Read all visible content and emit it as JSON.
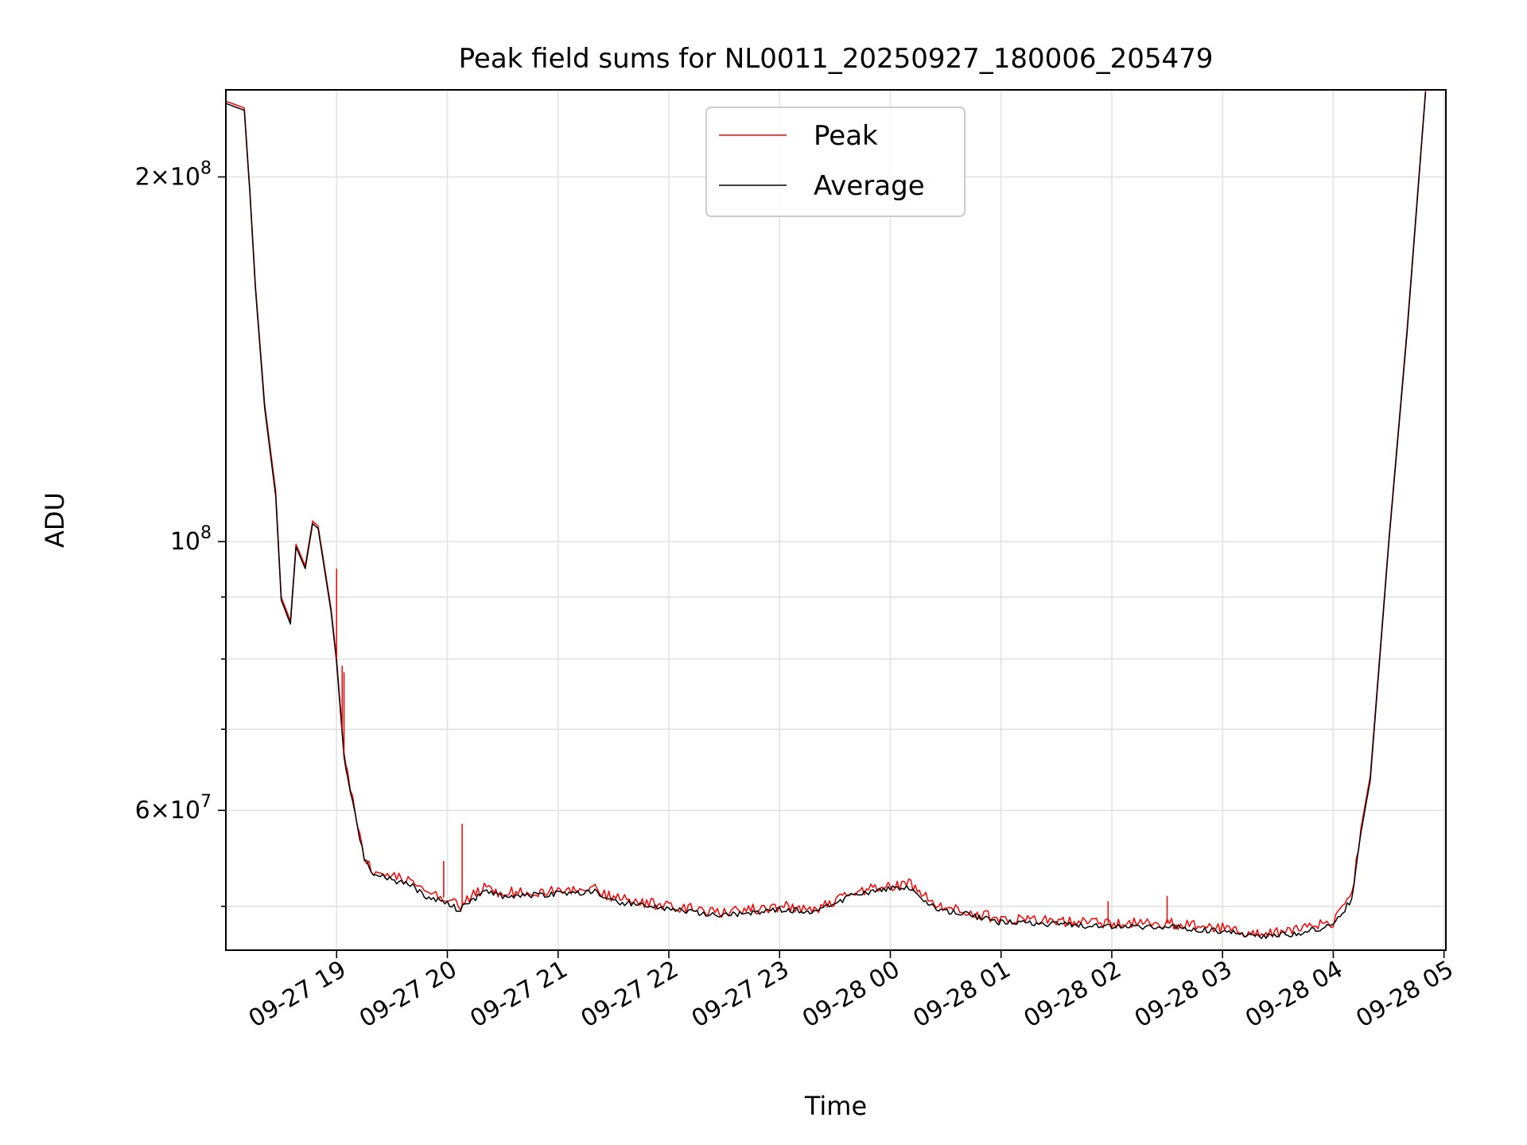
{
  "chart_data": {
    "type": "line",
    "title": "Peak field sums for NL0011_20250927_180006_205479",
    "xlabel": "Time",
    "ylabel": "ADU",
    "yscale": "log",
    "ylim": [
      46000000,
      236000000
    ],
    "xlim": [
      "09-27 18:00",
      "09-28 05:01"
    ],
    "x_tick_labels": [
      "09-27 19",
      "09-27 20",
      "09-27 21",
      "09-27 22",
      "09-27 23",
      "09-28 00",
      "09-28 01",
      "09-28 02",
      "09-28 03",
      "09-28 04",
      "09-28 05"
    ],
    "y_tick_labels": [
      {
        "value": 200000000,
        "mantissa": "2",
        "exponent": "8"
      },
      {
        "value": 100000000,
        "mantissa": "",
        "exponent": "8"
      },
      {
        "value": 60000000,
        "mantissa": "6",
        "exponent": "7"
      }
    ],
    "grid": true,
    "legend_position": "top-center",
    "series": [
      {
        "name": "Peak",
        "color": "#ff0000",
        "points": [
          [
            "09-27 18:00",
            231000000
          ],
          [
            "09-27 18:10",
            228000000
          ],
          [
            "09-27 18:13",
            195000000
          ],
          [
            "09-27 18:16",
            163000000
          ],
          [
            "09-27 18:21",
            130000000
          ],
          [
            "09-27 18:27",
            110000000
          ],
          [
            "09-27 18:30",
            90000000
          ],
          [
            "09-27 18:35",
            86000000
          ],
          [
            "09-27 18:38",
            99500000
          ],
          [
            "09-27 18:43",
            95500000
          ],
          [
            "09-27 18:47",
            104000000
          ],
          [
            "09-27 18:50",
            103000000
          ],
          [
            "09-27 18:57",
            88000000
          ],
          [
            "09-27 19:00",
            80000000
          ],
          [
            "09-27 19:04",
            67000000
          ],
          [
            "09-27 19:06",
            64000000
          ],
          [
            "09-27 19:10",
            60000000
          ],
          [
            "09-27 19:15",
            55000000
          ],
          [
            "09-27 19:20",
            53500000
          ],
          [
            "09-27 19:30",
            53000000
          ],
          [
            "09-27 19:40",
            52500000
          ],
          [
            "09-27 19:50",
            51000000
          ],
          [
            "09-27 20:00",
            50800000
          ],
          [
            "09-27 20:06",
            50000000
          ],
          [
            "09-27 20:20",
            51800000
          ],
          [
            "09-27 20:30",
            51300000
          ],
          [
            "09-27 21:00",
            51500000
          ],
          [
            "09-27 21:20",
            51700000
          ],
          [
            "09-27 21:30",
            50800000
          ],
          [
            "09-27 22:00",
            50000000
          ],
          [
            "09-27 22:20",
            49600000
          ],
          [
            "09-27 22:30",
            49400000
          ],
          [
            "09-27 23:00",
            50000000
          ],
          [
            "09-27 23:20",
            49800000
          ],
          [
            "09-27 23:40",
            51400000
          ],
          [
            "09-28 00:00",
            52000000
          ],
          [
            "09-28 00:10",
            52200000
          ],
          [
            "09-28 00:25",
            50000000
          ],
          [
            "09-28 00:40",
            49600000
          ],
          [
            "09-28 01:00",
            48800000
          ],
          [
            "09-28 01:30",
            48600000
          ],
          [
            "09-28 02:00",
            48400000
          ],
          [
            "09-28 02:30",
            48400000
          ],
          [
            "09-28 03:00",
            48000000
          ],
          [
            "09-28 03:20",
            47400000
          ],
          [
            "09-28 03:40",
            47800000
          ],
          [
            "09-28 04:00",
            48500000
          ],
          [
            "09-28 04:10",
            51000000
          ],
          [
            "09-28 04:15",
            58000000
          ],
          [
            "09-28 04:20",
            64000000
          ],
          [
            "09-28 04:25",
            80000000
          ],
          [
            "09-28 04:30",
            100000000
          ],
          [
            "09-28 04:40",
            150000000
          ],
          [
            "09-28 04:50",
            236000000
          ]
        ],
        "spikes": [
          [
            "09-27 19:00",
            95000000
          ],
          [
            "09-27 19:03",
            79000000
          ],
          [
            "09-27 19:04",
            78000000
          ],
          [
            "09-27 19:58",
            54500000
          ],
          [
            "09-27 20:08",
            58500000
          ],
          [
            "09-28 01:58",
            50500000
          ],
          [
            "09-28 02:30",
            51000000
          ]
        ]
      },
      {
        "name": "Average",
        "color": "#000000",
        "points": [
          [
            "09-27 18:00",
            230000000
          ],
          [
            "09-27 18:10",
            227000000
          ],
          [
            "09-27 18:13",
            194000000
          ],
          [
            "09-27 18:16",
            162000000
          ],
          [
            "09-27 18:21",
            129000000
          ],
          [
            "09-27 18:27",
            109000000
          ],
          [
            "09-27 18:30",
            89500000
          ],
          [
            "09-27 18:35",
            85500000
          ],
          [
            "09-27 18:38",
            99000000
          ],
          [
            "09-27 18:43",
            95000000
          ],
          [
            "09-27 18:47",
            103500000
          ],
          [
            "09-27 18:50",
            102500000
          ],
          [
            "09-27 18:57",
            87500000
          ],
          [
            "09-27 19:00",
            79500000
          ],
          [
            "09-27 19:04",
            66500000
          ],
          [
            "09-27 19:06",
            63500000
          ],
          [
            "09-27 19:10",
            59500000
          ],
          [
            "09-27 19:15",
            54700000
          ],
          [
            "09-27 19:20",
            53200000
          ],
          [
            "09-27 19:30",
            52600000
          ],
          [
            "09-27 19:40",
            52100000
          ],
          [
            "09-27 19:50",
            50700000
          ],
          [
            "09-27 20:00",
            50400000
          ],
          [
            "09-27 20:06",
            49600000
          ],
          [
            "09-27 20:20",
            51400000
          ],
          [
            "09-27 20:30",
            51000000
          ],
          [
            "09-27 21:00",
            51200000
          ],
          [
            "09-27 21:20",
            51400000
          ],
          [
            "09-27 21:30",
            50500000
          ],
          [
            "09-27 22:00",
            49700000
          ],
          [
            "09-27 22:20",
            49300000
          ],
          [
            "09-27 22:30",
            49100000
          ],
          [
            "09-27 23:00",
            49700000
          ],
          [
            "09-27 23:20",
            49500000
          ],
          [
            "09-27 23:40",
            51100000
          ],
          [
            "09-28 00:00",
            51700000
          ],
          [
            "09-28 00:10",
            51900000
          ],
          [
            "09-28 00:25",
            49700000
          ],
          [
            "09-28 00:40",
            49300000
          ],
          [
            "09-28 01:00",
            48500000
          ],
          [
            "09-28 01:30",
            48300000
          ],
          [
            "09-28 02:00",
            48100000
          ],
          [
            "09-28 02:30",
            48100000
          ],
          [
            "09-28 03:00",
            47700000
          ],
          [
            "09-28 03:20",
            47100000
          ],
          [
            "09-28 03:40",
            47500000
          ],
          [
            "09-28 04:00",
            48200000
          ],
          [
            "09-28 04:10",
            50700000
          ],
          [
            "09-28 04:15",
            57500000
          ],
          [
            "09-28 04:20",
            63500000
          ],
          [
            "09-28 04:25",
            79500000
          ],
          [
            "09-28 04:30",
            99500000
          ],
          [
            "09-28 04:40",
            149000000
          ],
          [
            "09-28 04:50",
            235000000
          ]
        ]
      }
    ]
  }
}
